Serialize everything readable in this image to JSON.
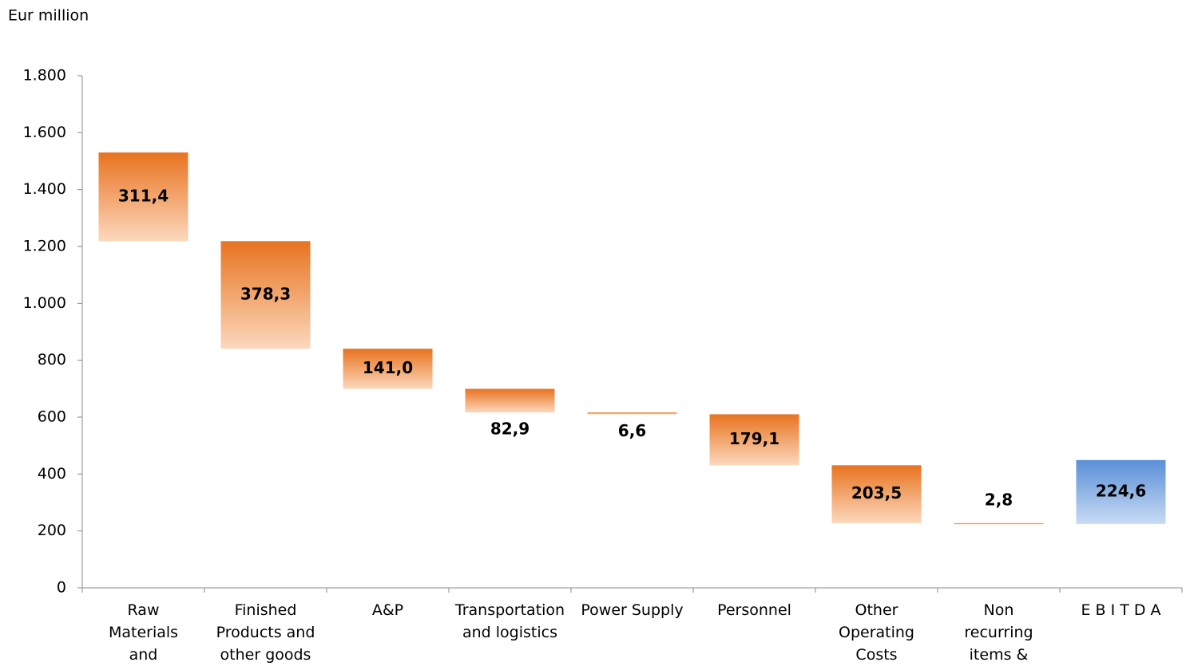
{
  "chart_data": {
    "type": "waterfall",
    "y_label": "Eur million",
    "categories": [
      "Raw Materials and Components",
      "Finished Products and other goods",
      "A&P",
      "Transportation and logistics",
      "Power Supply",
      "Personnel",
      "Other Operating Costs",
      "Non recurring items & BRAUN",
      "E B I T D A"
    ],
    "values": [
      311.4,
      378.3,
      141.0,
      82.9,
      6.6,
      179.1,
      203.5,
      2.8,
      224.6
    ],
    "value_labels": [
      "311,4",
      "378,3",
      "141,0",
      "82,9",
      "6,6",
      "179,1",
      "203,5",
      "2,8",
      "224,6"
    ],
    "colors": [
      "#e8731f",
      "#e8731f",
      "#e8731f",
      "#e8731f",
      "#e8731f",
      "#e8731f",
      "#e8731f",
      "#e8731f",
      "#5a8fd8"
    ],
    "ylim": [
      0,
      1800
    ],
    "yticks": [
      0,
      200,
      400,
      600,
      800,
      {
        "value": 1000,
        "label": "1.000"
      },
      {
        "value": 1200,
        "label": "1.200"
      },
      {
        "value": 1400,
        "label": "1.400"
      },
      {
        "value": 1600,
        "label": "1.600"
      },
      {
        "value": 1800,
        "label": "1.800"
      }
    ],
    "grid": false
  }
}
